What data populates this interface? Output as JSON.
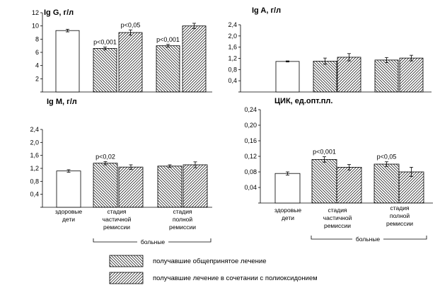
{
  "colors": {
    "bar_fill": "#ffffff",
    "stroke": "#000000",
    "hatch": "#000000"
  },
  "chart_data": [
    {
      "type": "bar",
      "title": "Ig G, г/л",
      "ylim": [
        0,
        12
      ],
      "yticks": [
        "",
        "2",
        "4",
        "6",
        "8",
        "10",
        "12"
      ],
      "groups": [
        {
          "bars": [
            {
              "series": 0,
              "value": 9.3,
              "err": 0.2
            }
          ]
        },
        {
          "bars": [
            {
              "series": 1,
              "value": 6.6,
              "err": 0.2,
              "label": "p<0,001"
            },
            {
              "series": 2,
              "value": 9.0,
              "err": 0.4,
              "label": "p<0,05"
            }
          ]
        },
        {
          "bars": [
            {
              "series": 1,
              "value": 7.0,
              "err": 0.2,
              "label": "p<0,001"
            },
            {
              "series": 2,
              "value": 10.0,
              "err": 0.4
            }
          ]
        }
      ]
    },
    {
      "type": "bar",
      "title": "Ig A, г/л",
      "ylim": [
        0,
        2.4
      ],
      "yticks": [
        "",
        "0,4",
        "0,8",
        "1,2",
        "1,6",
        "2,0",
        "2,4"
      ],
      "groups": [
        {
          "bars": [
            {
              "series": 0,
              "value": 1.09,
              "err": 0.02
            }
          ]
        },
        {
          "bars": [
            {
              "series": 1,
              "value": 1.1,
              "err": 0.11
            },
            {
              "series": 2,
              "value": 1.24,
              "err": 0.13
            }
          ]
        },
        {
          "bars": [
            {
              "series": 1,
              "value": 1.14,
              "err": 0.09
            },
            {
              "series": 2,
              "value": 1.21,
              "err": 0.1
            }
          ]
        }
      ]
    },
    {
      "type": "bar",
      "title": "Ig M, г/л",
      "ylim": [
        0,
        2.4
      ],
      "yticks": [
        "",
        "0,4",
        "0,8",
        "1,2",
        "1,6",
        "2,0",
        "2,4"
      ],
      "groups": [
        {
          "bars": [
            {
              "series": 0,
              "value": 1.12,
              "err": 0.04
            }
          ]
        },
        {
          "bars": [
            {
              "series": 1,
              "value": 1.36,
              "err": 0.05,
              "label": "p<0,02"
            },
            {
              "series": 2,
              "value": 1.24,
              "err": 0.07
            }
          ]
        },
        {
          "bars": [
            {
              "series": 1,
              "value": 1.27,
              "err": 0.04
            },
            {
              "series": 2,
              "value": 1.31,
              "err": 0.09
            }
          ]
        }
      ]
    },
    {
      "type": "bar",
      "title": "ЦИК, ед.опт.пл.",
      "ylim": [
        0,
        0.24
      ],
      "yticks": [
        "",
        "0,04",
        "0,08",
        "0,12",
        "0,16",
        "0,20",
        "0,24"
      ],
      "groups": [
        {
          "bars": [
            {
              "series": 0,
              "value": 0.076,
              "err": 0.004
            }
          ]
        },
        {
          "bars": [
            {
              "series": 1,
              "value": 0.112,
              "err": 0.007,
              "label": "p<0,001"
            },
            {
              "series": 2,
              "value": 0.092,
              "err": 0.007
            }
          ]
        },
        {
          "bars": [
            {
              "series": 1,
              "value": 0.1,
              "err": 0.006,
              "label": "p<0,05"
            },
            {
              "series": 2,
              "value": 0.08,
              "err": 0.012
            }
          ]
        }
      ]
    }
  ],
  "categories": {
    "healthy": [
      "здоровые",
      "дети"
    ],
    "partial": [
      "стадия",
      "частичной",
      "ремиссии"
    ],
    "full": [
      "стадия",
      "полной",
      "ремиссии"
    ],
    "patients": "больные"
  },
  "legend": [
    {
      "label": "получавшие общепринятое лечение",
      "hatch": "back"
    },
    {
      "label": "получавшие лечение в сочетании с полиоксидонием",
      "hatch": "fwd"
    }
  ]
}
